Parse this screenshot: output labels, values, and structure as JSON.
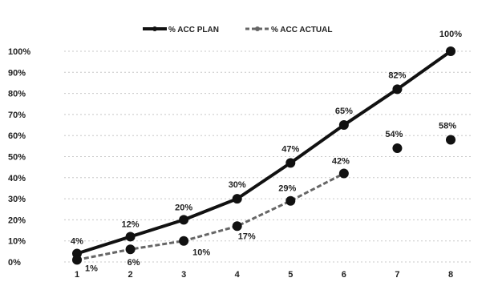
{
  "chart_data": {
    "type": "line",
    "title": "",
    "xlabel": "",
    "ylabel": "",
    "categories": [
      "1",
      "2",
      "3",
      "4",
      "5",
      "6",
      "7",
      "8"
    ],
    "ylim": [
      0,
      100
    ],
    "y_ticks": [
      "0%",
      "10%",
      "20%",
      "30%",
      "40%",
      "50%",
      "60%",
      "70%",
      "80%",
      "90%",
      "100%"
    ],
    "grid": false,
    "legend_position": "top",
    "series": [
      {
        "name": "% ACC PLAN",
        "color": "#111111",
        "values": [
          4,
          12,
          20,
          30,
          47,
          65,
          82,
          100
        ],
        "labels": [
          "4%",
          "12%",
          "20%",
          "30%",
          "47%",
          "65%",
          "82%",
          "100%"
        ]
      },
      {
        "name": "% ACC ACTUAL",
        "color": "#666666",
        "values": [
          1,
          6,
          10,
          17,
          29,
          42,
          54,
          58
        ],
        "labels": [
          "1%",
          "6%",
          "10%",
          "17%",
          "29%",
          "42%",
          "54%",
          "58%"
        ]
      }
    ]
  }
}
